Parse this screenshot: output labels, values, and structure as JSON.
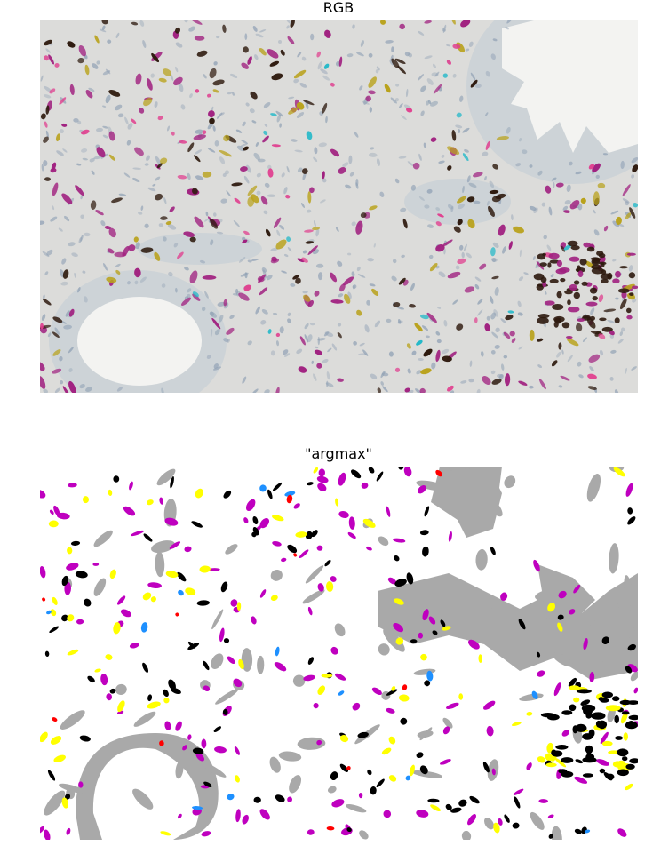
{
  "panels": {
    "top": {
      "title": "RGB"
    },
    "bottom": {
      "title": "\"argmax\""
    }
  },
  "classes": {
    "background": "#ffffff",
    "epithelium": "#a9a9a9",
    "dark_stain": "#000000",
    "magenta_stain": "#bf00bf",
    "yellow_stain": "#ffff00",
    "cyan_stain": "#1e90ff",
    "red_stain": "#ff0000"
  },
  "rgb_colors": {
    "tissue": "#dcdcda",
    "nuclei": "#8fa0b4",
    "lumen": "#f3f3f1",
    "brown": "#2e1a0e",
    "magenta": "#a0207f",
    "olive": "#b9a21c",
    "cyan": "#22b8c8",
    "pink": "#e0408f"
  }
}
